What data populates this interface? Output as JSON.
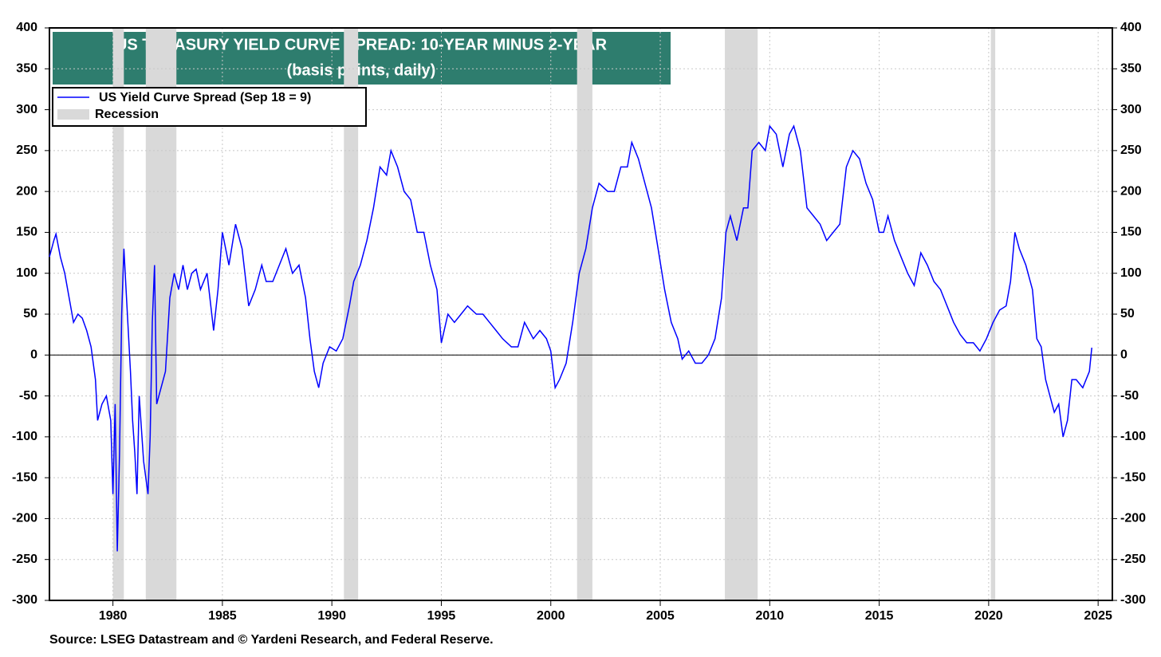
{
  "chart_data": {
    "type": "line",
    "title": "US TREASURY YIELD CURVE SPREAD: 10-YEAR MINUS 2-YEAR",
    "subtitle": "(basis points, daily)",
    "source": "Source: LSEG Datastream and © Yardeni Research, and Federal Reserve.",
    "recession_label": "Recession",
    "recession_color": "#d9d9d9",
    "recessions": [
      [
        1980.0,
        1980.5
      ],
      [
        1981.5,
        1982.9
      ],
      [
        1990.55,
        1991.2
      ],
      [
        2001.2,
        2001.9
      ],
      [
        2007.95,
        2009.45
      ],
      [
        2020.1,
        2020.3
      ]
    ],
    "grid": true,
    "xlim": [
      1977.1,
      2025.65
    ],
    "xticks": [
      1980,
      1985,
      1990,
      1995,
      2000,
      2005,
      2010,
      2015,
      2020,
      2025
    ],
    "ylim": [
      -300,
      400
    ],
    "yticks": [
      -300,
      -250,
      -200,
      -150,
      -100,
      -50,
      0,
      50,
      100,
      150,
      200,
      250,
      300,
      350,
      400
    ],
    "y2lim": [
      -300,
      400
    ],
    "y2ticks": [
      -300,
      -250,
      -200,
      -150,
      -100,
      -50,
      0,
      50,
      100,
      150,
      200,
      250,
      300,
      350,
      400
    ],
    "x": [
      1977.1,
      1977.3,
      1977.4,
      1977.6,
      1977.8,
      1978.0,
      1978.2,
      1978.4,
      1978.6,
      1978.8,
      1979.0,
      1979.2,
      1979.3,
      1979.5,
      1979.7,
      1979.9,
      1980.0,
      1980.1,
      1980.2,
      1980.3,
      1980.4,
      1980.5,
      1980.6,
      1980.8,
      1980.9,
      1981.0,
      1981.1,
      1981.2,
      1981.4,
      1981.6,
      1981.7,
      1981.8,
      1981.9,
      1982.0,
      1982.2,
      1982.4,
      1982.6,
      1982.8,
      1983.0,
      1983.2,
      1983.4,
      1983.6,
      1983.8,
      1984.0,
      1984.3,
      1984.6,
      1984.8,
      1985.0,
      1985.3,
      1985.6,
      1985.9,
      1986.2,
      1986.5,
      1986.8,
      1987.0,
      1987.3,
      1987.6,
      1987.9,
      1988.2,
      1988.5,
      1988.8,
      1989.0,
      1989.2,
      1989.4,
      1989.6,
      1989.9,
      1990.2,
      1990.5,
      1990.8,
      1991.0,
      1991.3,
      1991.6,
      1991.9,
      1992.2,
      1992.5,
      1992.7,
      1993.0,
      1993.3,
      1993.6,
      1993.9,
      1994.2,
      1994.5,
      1994.8,
      1995.0,
      1995.3,
      1995.6,
      1995.9,
      1996.2,
      1996.6,
      1996.9,
      1997.2,
      1997.5,
      1997.8,
      1998.2,
      1998.5,
      1998.8,
      1999.2,
      1999.5,
      1999.8,
      2000.0,
      2000.2,
      2000.4,
      2000.7,
      2001.0,
      2001.3,
      2001.6,
      2001.9,
      2002.2,
      2002.6,
      2002.9,
      2003.2,
      2003.5,
      2003.7,
      2004.0,
      2004.3,
      2004.6,
      2004.9,
      2005.2,
      2005.5,
      2005.8,
      2006.0,
      2006.3,
      2006.6,
      2006.9,
      2007.2,
      2007.5,
      2007.8,
      2008.0,
      2008.2,
      2008.5,
      2008.8,
      2009.0,
      2009.2,
      2009.5,
      2009.8,
      2010.0,
      2010.3,
      2010.6,
      2010.9,
      2011.1,
      2011.4,
      2011.7,
      2012.0,
      2012.3,
      2012.6,
      2012.9,
      2013.2,
      2013.5,
      2013.8,
      2014.1,
      2014.4,
      2014.7,
      2015.0,
      2015.2,
      2015.4,
      2015.7,
      2016.0,
      2016.3,
      2016.6,
      2016.9,
      2017.2,
      2017.5,
      2017.8,
      2018.1,
      2018.4,
      2018.7,
      2019.0,
      2019.3,
      2019.6,
      2019.9,
      2020.2,
      2020.5,
      2020.8,
      2021.0,
      2021.2,
      2021.4,
      2021.7,
      2022.0,
      2022.2,
      2022.4,
      2022.6,
      2022.8,
      2023.0,
      2023.2,
      2023.4,
      2023.6,
      2023.8,
      2024.0,
      2024.3,
      2024.6,
      2024.71
    ],
    "series": [
      {
        "name": "US Yield Curve Spread (Sep 18 = 9)",
        "color": "#0000ff",
        "values": [
          120,
          140,
          148,
          120,
          100,
          70,
          40,
          50,
          45,
          30,
          10,
          -30,
          -80,
          -60,
          -50,
          -80,
          -170,
          -60,
          -240,
          -120,
          50,
          130,
          80,
          -20,
          -80,
          -120,
          -170,
          -50,
          -130,
          -170,
          -100,
          40,
          110,
          -60,
          -40,
          -20,
          70,
          100,
          80,
          110,
          80,
          100,
          105,
          80,
          100,
          30,
          80,
          150,
          110,
          160,
          130,
          60,
          80,
          110,
          90,
          90,
          110,
          130,
          100,
          110,
          70,
          20,
          -20,
          -40,
          -10,
          10,
          5,
          20,
          60,
          90,
          110,
          140,
          180,
          230,
          220,
          250,
          230,
          200,
          190,
          150,
          150,
          110,
          80,
          15,
          50,
          40,
          50,
          60,
          50,
          50,
          40,
          30,
          20,
          10,
          10,
          40,
          20,
          30,
          20,
          5,
          -40,
          -30,
          -10,
          40,
          100,
          130,
          180,
          210,
          200,
          200,
          230,
          230,
          260,
          240,
          210,
          180,
          130,
          80,
          40,
          20,
          -5,
          5,
          -10,
          -10,
          0,
          20,
          70,
          150,
          170,
          140,
          180,
          180,
          250,
          260,
          250,
          280,
          270,
          230,
          270,
          280,
          250,
          180,
          170,
          160,
          140,
          150,
          160,
          230,
          250,
          240,
          210,
          190,
          150,
          150,
          170,
          140,
          120,
          100,
          85,
          125,
          110,
          90,
          80,
          60,
          40,
          25,
          15,
          15,
          5,
          20,
          40,
          55,
          60,
          90,
          150,
          130,
          110,
          80,
          20,
          10,
          -30,
          -50,
          -70,
          -60,
          -100,
          -80,
          -30,
          -30,
          -40,
          -20,
          9
        ]
      }
    ]
  }
}
